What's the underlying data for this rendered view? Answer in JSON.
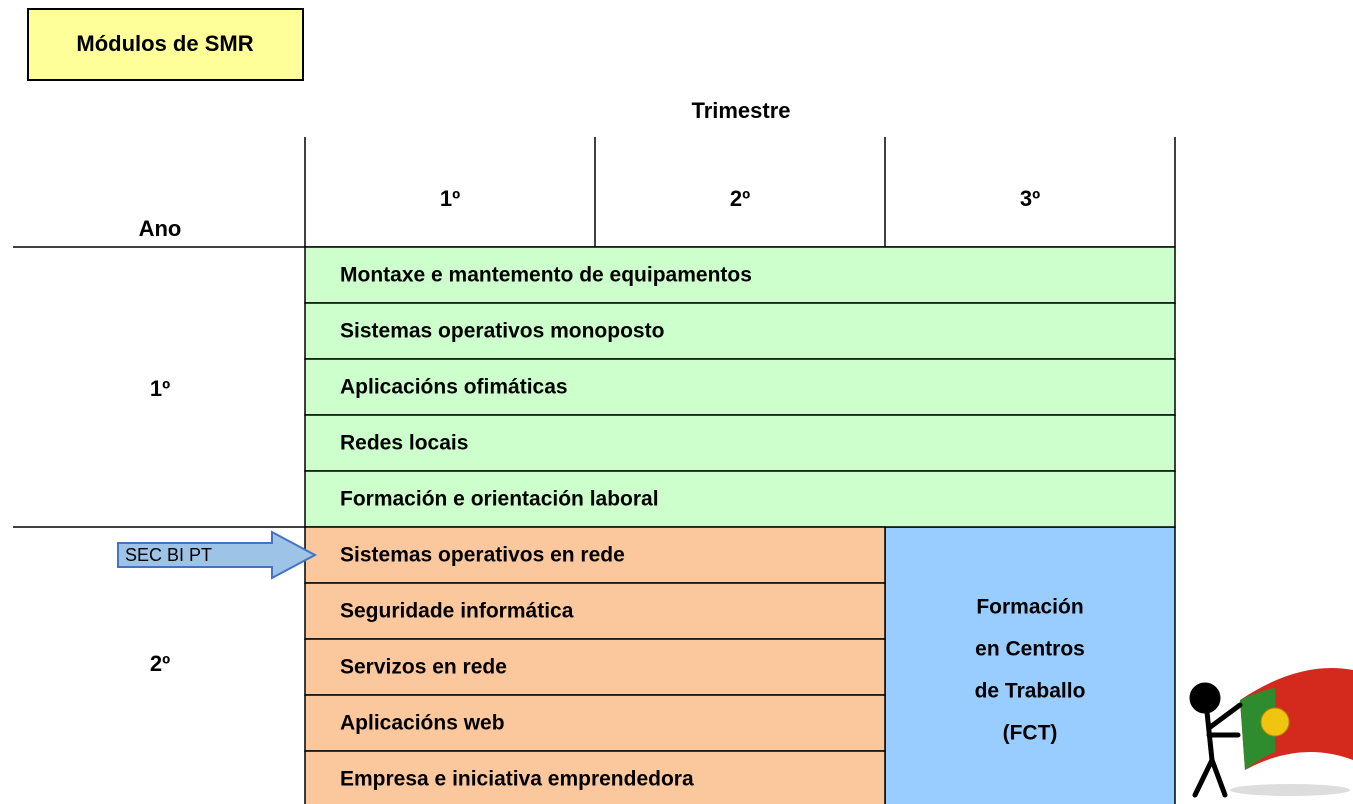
{
  "title": "Módulos de SMR",
  "header": {
    "trimestre": "Trimestre",
    "ano": "Ano",
    "quarters": [
      "1º",
      "2º",
      "3º"
    ]
  },
  "years": [
    {
      "label": "1º",
      "modules": [
        "Montaxe e mantemento de equipamentos",
        "Sistemas operativos monoposto",
        "Aplicacións ofimáticas",
        "Redes locais",
        "Formación e orientación laboral"
      ]
    },
    {
      "label": "2º",
      "modules": [
        "Sistemas operativos en rede",
        "Seguridade informática",
        "Servizos en rede",
        "Aplicacións web",
        "Empresa e iniciativa emprendedora"
      ],
      "fct": [
        "Formación",
        "en Centros",
        "de Traballo",
        "(FCT)"
      ]
    }
  ],
  "arrow_label": "SEC BI PT"
}
